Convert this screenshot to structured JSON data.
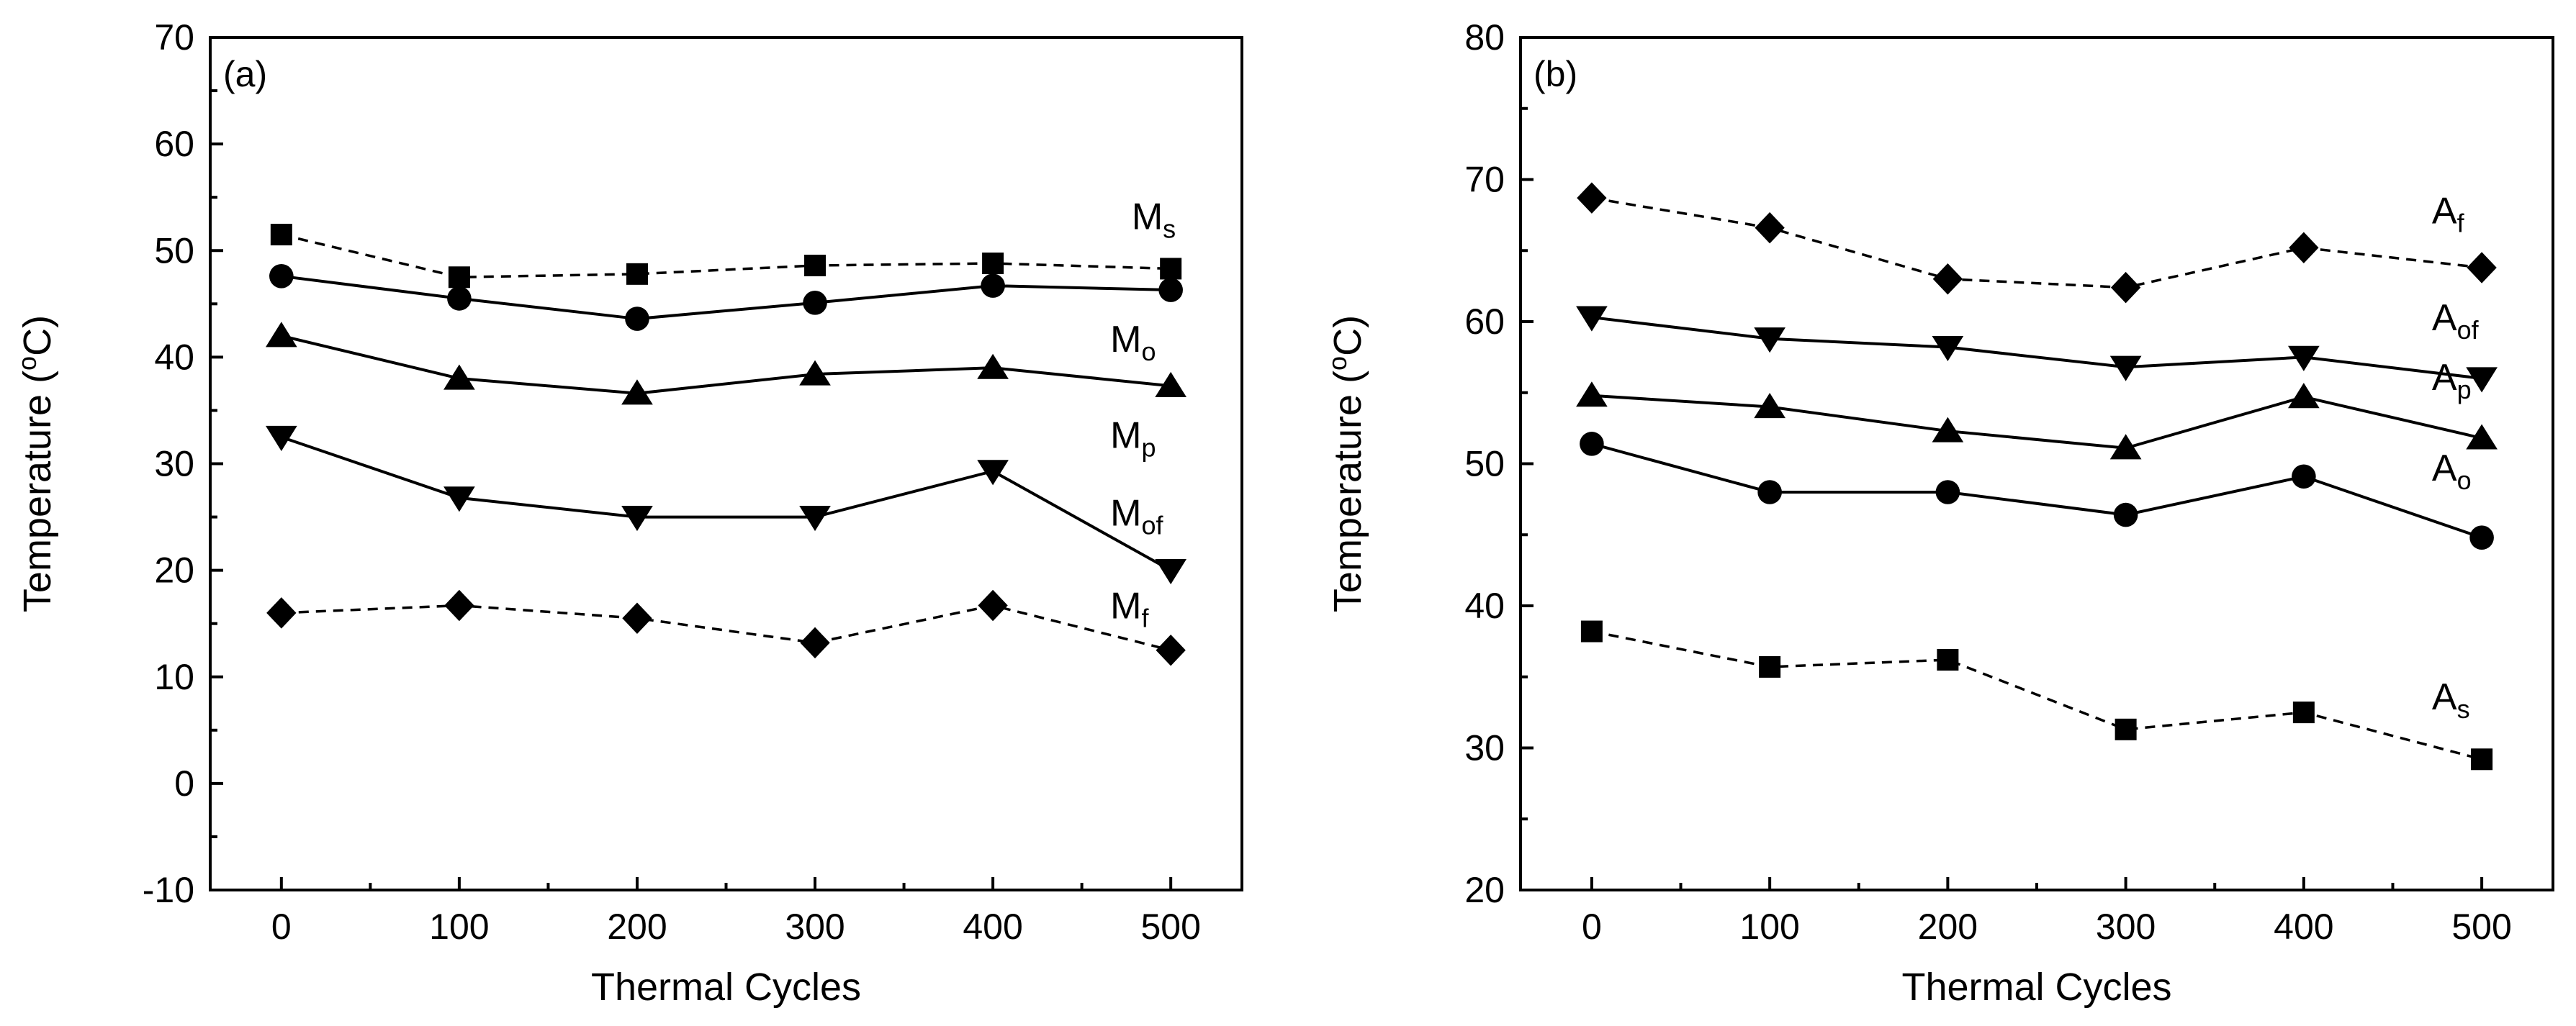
{
  "chart_data": [
    {
      "type": "line",
      "panel_label": "(a)",
      "xlabel": "Thermal Cycles",
      "ylabel": "Temperature (°C)",
      "x": [
        0,
        100,
        200,
        300,
        400,
        500
      ],
      "xlim": [
        -40,
        540
      ],
      "ylim": [
        -10,
        70
      ],
      "xticks": [
        "0",
        "100",
        "200",
        "300",
        "400",
        "500"
      ],
      "yticks": [
        "-10",
        "0",
        "10",
        "20",
        "30",
        "40",
        "50",
        "60",
        "70"
      ],
      "series": [
        {
          "name": "Ms",
          "label_main": "M",
          "label_sub": "s",
          "marker": "square",
          "dashed": true,
          "values": [
            51.5,
            47.5,
            47.8,
            48.6,
            48.8,
            48.3
          ],
          "label_at": [
            478,
            52
          ]
        },
        {
          "name": "Mo",
          "label_main": "M",
          "label_sub": "o",
          "marker": "circle",
          "dashed": false,
          "values": [
            47.6,
            45.5,
            43.6,
            45.1,
            46.7,
            46.3
          ],
          "label_at": [
            466,
            40.5
          ]
        },
        {
          "name": "Mp",
          "label_main": "M",
          "label_sub": "p",
          "marker": "triangle-up",
          "dashed": false,
          "values": [
            42.0,
            38.0,
            36.6,
            38.4,
            39.0,
            37.3
          ],
          "label_at": [
            466,
            31.5
          ]
        },
        {
          "name": "Mof",
          "label_main": "M",
          "label_sub": "of",
          "marker": "triangle-down",
          "dashed": false,
          "values": [
            32.5,
            26.8,
            25.0,
            25.0,
            29.3,
            20.0
          ],
          "label_at": [
            466,
            24.2
          ]
        },
        {
          "name": "Mf",
          "label_main": "M",
          "label_sub": "f",
          "marker": "diamond",
          "dashed": true,
          "values": [
            16.0,
            16.7,
            15.5,
            13.2,
            16.7,
            12.5
          ],
          "label_at": [
            466,
            15.5
          ]
        }
      ]
    },
    {
      "type": "line",
      "panel_label": "(b)",
      "xlabel": "Thermal Cycles",
      "ylabel": "Temperature (°C)",
      "x": [
        0,
        100,
        200,
        300,
        400,
        500
      ],
      "xlim": [
        -40,
        540
      ],
      "ylim": [
        20,
        80
      ],
      "xticks": [
        "0",
        "100",
        "200",
        "300",
        "400",
        "500"
      ],
      "yticks": [
        "20",
        "30",
        "40",
        "50",
        "60",
        "70",
        "80"
      ],
      "series": [
        {
          "name": "Af",
          "label_main": "A",
          "label_sub": "f",
          "marker": "diamond",
          "dashed": true,
          "values": [
            68.7,
            66.6,
            63.0,
            62.4,
            65.2,
            63.8
          ],
          "label_at": [
            472,
            66.9
          ]
        },
        {
          "name": "Aof",
          "label_main": "A",
          "label_sub": "of",
          "marker": "triangle-down",
          "dashed": false,
          "values": [
            60.3,
            58.8,
            58.2,
            56.8,
            57.5,
            56.0
          ],
          "label_at": [
            472,
            59.4
          ]
        },
        {
          "name": "Ap",
          "label_main": "A",
          "label_sub": "p",
          "marker": "triangle-up",
          "dashed": false,
          "values": [
            54.8,
            54.0,
            52.3,
            51.1,
            54.7,
            51.8
          ],
          "label_at": [
            472,
            55.2
          ]
        },
        {
          "name": "Ao",
          "label_main": "A",
          "label_sub": "o",
          "marker": "circle",
          "dashed": false,
          "values": [
            51.4,
            48.0,
            48.0,
            46.4,
            49.1,
            44.8
          ],
          "label_at": [
            472,
            48.8
          ]
        },
        {
          "name": "As",
          "label_main": "A",
          "label_sub": "s",
          "marker": "square",
          "dashed": true,
          "values": [
            38.2,
            35.7,
            36.2,
            31.3,
            32.5,
            29.2
          ],
          "label_at": [
            472,
            32.7
          ]
        }
      ]
    }
  ]
}
